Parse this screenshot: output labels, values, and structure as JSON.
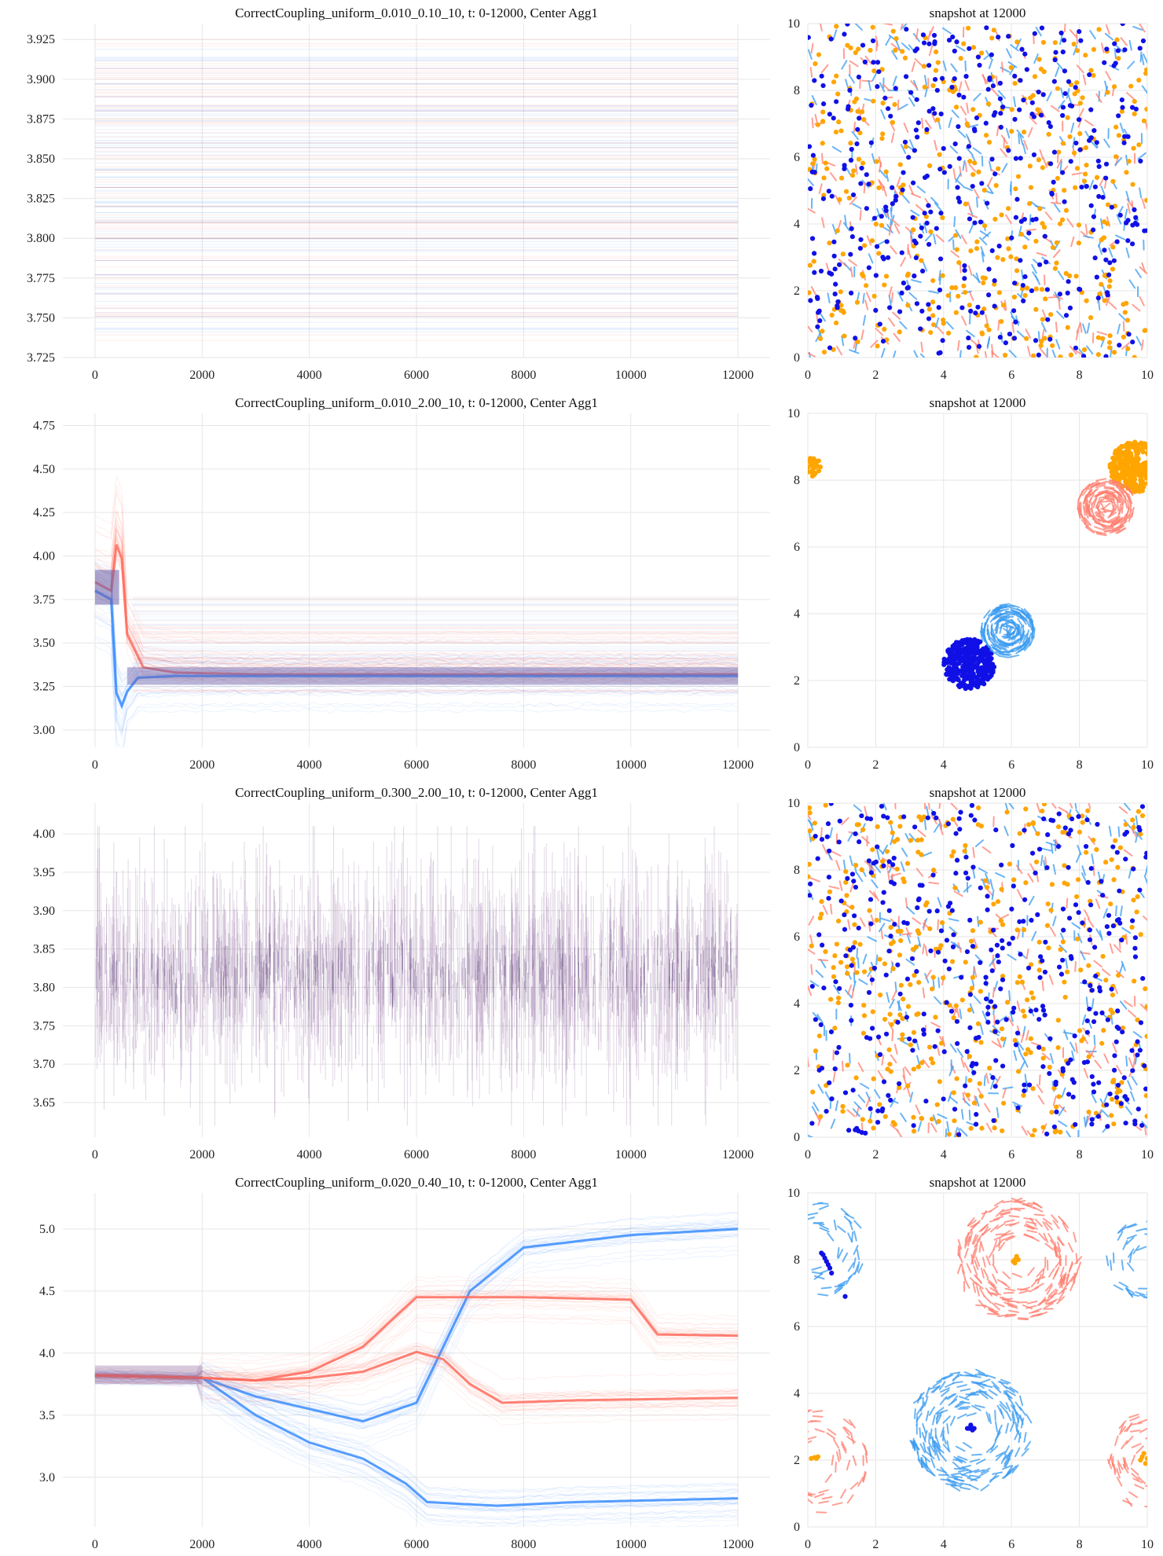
{
  "figure": {
    "title": ""
  },
  "chart_data": [
    {
      "type": "line",
      "title": "CorrectCoupling_uniform_0.010_0.10_10,     t: 0-12000, Center Agg1",
      "xlabel": "",
      "ylabel": "",
      "xlim": [
        -600,
        12600
      ],
      "ylim": [
        3.725,
        3.935
      ],
      "xticks": [
        0,
        2000,
        4000,
        6000,
        8000,
        10000,
        12000
      ],
      "yticks": [
        3.725,
        3.75,
        3.775,
        3.8,
        3.825,
        3.85,
        3.875,
        3.9,
        3.925
      ],
      "ytick_labels": [
        "3.725",
        "3.750",
        "3.775",
        "3.800",
        "3.825",
        "3.850",
        "3.875",
        "3.900",
        "3.925"
      ],
      "grid": true,
      "legend": "none",
      "colors": {
        "red": "#ff6a5a",
        "blue": "#3a8dff",
        "mix": "#7a4f8f"
      },
      "pattern": "flat",
      "series": [
        {
          "color": "blue",
          "band": [
            3.74,
            3.92
          ],
          "strong_levels": [
            3.751,
            3.777,
            3.786,
            3.81,
            3.82,
            3.843,
            3.88,
            3.897
          ]
        },
        {
          "color": "red",
          "band": [
            3.735,
            3.925
          ],
          "strong_levels": [
            3.765,
            3.8,
            3.832,
            3.857,
            3.889
          ]
        }
      ]
    },
    {
      "type": "scatter",
      "title": "snapshot at 12000",
      "xlim": [
        0,
        10
      ],
      "ylim": [
        0,
        10
      ],
      "xticks": [
        0,
        2,
        4,
        6,
        8,
        10
      ],
      "yticks": [
        0,
        2,
        4,
        6,
        8,
        10
      ],
      "grid": true,
      "legend": "none",
      "colors": {
        "dots_a": "#1010e6",
        "dots_b": "#ffa500",
        "dash_a": "#3a9bf0",
        "dash_b": "#ff7f70"
      },
      "pattern": "uniform"
    },
    {
      "type": "line",
      "title": "CorrectCoupling_uniform_0.010_2.00_10,     t: 0-12000, Center Agg1",
      "xlabel": "",
      "ylabel": "",
      "xlim": [
        -600,
        12600
      ],
      "ylim": [
        2.9,
        4.82
      ],
      "xticks": [
        0,
        2000,
        4000,
        6000,
        8000,
        10000,
        12000
      ],
      "yticks": [
        3.0,
        3.25,
        3.5,
        3.75,
        4.0,
        4.25,
        4.5,
        4.75
      ],
      "ytick_labels": [
        "3.00",
        "3.25",
        "3.50",
        "3.75",
        "4.00",
        "4.25",
        "4.50",
        "4.75"
      ],
      "grid": true,
      "legend": "none",
      "colors": {
        "red": "#ff6a5a",
        "blue": "#3a8dff",
        "mix": "#6a5fa8"
      },
      "pattern": "converge",
      "series": [
        {
          "color": "red",
          "x": [
            0,
            300,
            450,
            600,
            900,
            1500,
            3000,
            12000
          ],
          "y": [
            3.85,
            3.8,
            4.2,
            3.55,
            3.36,
            3.33,
            3.32,
            3.32
          ]
        },
        {
          "color": "blue",
          "x": [
            0,
            300,
            430,
            550,
            800,
            1500,
            3000,
            12000
          ],
          "y": [
            3.8,
            3.75,
            3.05,
            3.2,
            3.3,
            3.31,
            3.31,
            3.31
          ]
        }
      ]
    },
    {
      "type": "scatter",
      "title": "snapshot at 12000",
      "xlim": [
        0,
        10
      ],
      "ylim": [
        0,
        10
      ],
      "xticks": [
        0,
        2,
        4,
        6,
        8,
        10
      ],
      "yticks": [
        0,
        2,
        4,
        6,
        8,
        10
      ],
      "grid": true,
      "legend": "none",
      "colors": {
        "dots_a": "#1010e6",
        "dots_b": "#ffa500",
        "dash_a": "#3a9bf0",
        "dash_b": "#ff7f70"
      },
      "pattern": "clusters",
      "clusters": [
        {
          "kind": "dots_a",
          "cx": 4.75,
          "cy": 2.5,
          "r": 0.75,
          "n": 360
        },
        {
          "kind": "dash_a",
          "cx": 5.9,
          "cy": 3.5,
          "r": 0.8,
          "n": 170
        },
        {
          "kind": "dots_b",
          "cx": 9.65,
          "cy": 8.4,
          "r": 0.75,
          "n": 320
        },
        {
          "kind": "dots_b",
          "cx": 0.1,
          "cy": 8.4,
          "r": 0.3,
          "n": 40
        },
        {
          "kind": "dash_b",
          "cx": 8.8,
          "cy": 7.2,
          "r": 0.85,
          "n": 170
        }
      ]
    },
    {
      "type": "line",
      "title": "CorrectCoupling_uniform_0.300_2.00_10,     t: 0-12000, Center Agg1",
      "xlabel": "",
      "ylabel": "",
      "xlim": [
        -600,
        12600
      ],
      "ylim": [
        3.605,
        4.04
      ],
      "xticks": [
        0,
        2000,
        4000,
        6000,
        8000,
        10000,
        12000
      ],
      "yticks": [
        3.65,
        3.7,
        3.75,
        3.8,
        3.85,
        3.9,
        3.95,
        4.0
      ],
      "ytick_labels": [
        "3.65",
        "3.70",
        "3.75",
        "3.80",
        "3.85",
        "3.90",
        "3.95",
        "4.00"
      ],
      "grid": true,
      "legend": "none",
      "colors": {
        "red": "#ff6a5a",
        "blue": "#3a8dff",
        "mix": "#7a4f8f"
      },
      "pattern": "noise",
      "series": [
        {
          "color": "mix",
          "mean": 3.82,
          "spread": [
            3.62,
            4.01
          ]
        }
      ]
    },
    {
      "type": "scatter",
      "title": "snapshot at 12000",
      "xlim": [
        0,
        10
      ],
      "ylim": [
        0,
        10
      ],
      "xticks": [
        0,
        2,
        4,
        6,
        8,
        10
      ],
      "yticks": [
        0,
        2,
        4,
        6,
        8,
        10
      ],
      "grid": true,
      "legend": "none",
      "colors": {
        "dots_a": "#1010e6",
        "dots_b": "#ffa500",
        "dash_a": "#3a9bf0",
        "dash_b": "#ff7f70"
      },
      "pattern": "uniform"
    },
    {
      "type": "line",
      "title": "CorrectCoupling_uniform_0.020_0.40_10,     t: 0-12000, Center Agg1",
      "xlabel": "",
      "ylabel": "",
      "xlim": [
        -600,
        12600
      ],
      "ylim": [
        2.6,
        5.29
      ],
      "xticks": [
        0,
        2000,
        4000,
        6000,
        8000,
        10000,
        12000
      ],
      "yticks": [
        3.0,
        3.5,
        4.0,
        4.5,
        5.0
      ],
      "ytick_labels": [
        "3.0",
        "3.5",
        "4.0",
        "4.5",
        "5.0"
      ],
      "grid": true,
      "legend": "none",
      "colors": {
        "red": "#ff6a5a",
        "blue": "#3a8dff",
        "mix": "#7a4f8f"
      },
      "pattern": "branch",
      "series": [
        {
          "color": "blue",
          "x": [
            0,
            2000,
            3000,
            4000,
            5000,
            5800,
            6200,
            7500,
            9000,
            12000
          ],
          "y": [
            3.82,
            3.8,
            3.5,
            3.28,
            3.15,
            2.95,
            2.8,
            2.77,
            2.8,
            2.83
          ]
        },
        {
          "color": "blue",
          "x": [
            0,
            2000,
            3000,
            4000,
            5000,
            6000,
            7000,
            8000,
            10000,
            12000
          ],
          "y": [
            3.82,
            3.8,
            3.65,
            3.55,
            3.45,
            3.6,
            4.5,
            4.85,
            4.95,
            5.0
          ]
        },
        {
          "color": "red",
          "x": [
            0,
            2000,
            3000,
            4000,
            5000,
            6000,
            7000,
            8000,
            10000,
            10500,
            12000
          ],
          "y": [
            3.82,
            3.8,
            3.78,
            3.85,
            4.05,
            4.45,
            4.45,
            4.45,
            4.43,
            4.15,
            4.14
          ]
        },
        {
          "color": "red",
          "x": [
            0,
            2000,
            3000,
            4000,
            5000,
            6000,
            6500,
            7000,
            7600,
            9000,
            12000
          ],
          "y": [
            3.82,
            3.8,
            3.78,
            3.8,
            3.85,
            4.01,
            3.95,
            3.75,
            3.6,
            3.62,
            3.64
          ]
        }
      ]
    },
    {
      "type": "scatter",
      "title": "snapshot at 12000",
      "xlim": [
        0,
        10
      ],
      "ylim": [
        0,
        10
      ],
      "xticks": [
        0,
        2,
        4,
        6,
        8,
        10
      ],
      "yticks": [
        0,
        2,
        4,
        6,
        8,
        10
      ],
      "grid": true,
      "legend": "none",
      "colors": {
        "dots_a": "#1010e6",
        "dots_b": "#ffa500",
        "dash_a": "#3a9bf0",
        "dash_b": "#ff7f70"
      },
      "pattern": "vortex",
      "vortices": [
        {
          "kind": "dash_b",
          "cx": 6.2,
          "cy": 8.0,
          "r": 1.8,
          "n": 230
        },
        {
          "kind": "dash_a",
          "cx": 4.8,
          "cy": 2.9,
          "r": 1.8,
          "n": 240
        },
        {
          "kind": "dash_b",
          "cx": 10.2,
          "cy": 2.0,
          "r": 1.5,
          "n": 90
        },
        {
          "kind": "dash_b",
          "cx": 0.2,
          "cy": 2.0,
          "r": 1.6,
          "n": 90
        },
        {
          "kind": "dash_a",
          "cx": 0.3,
          "cy": 8.3,
          "r": 1.4,
          "n": 70
        },
        {
          "kind": "dash_a",
          "cx": 10.0,
          "cy": 8.0,
          "r": 1.2,
          "n": 50
        }
      ],
      "points": [
        {
          "kind": "dots_a",
          "x": [
            0.4,
            0.45,
            0.5,
            0.55,
            0.6,
            0.65,
            0.7,
            1.1
          ],
          "y": [
            8.2,
            8.15,
            8.05,
            7.95,
            7.85,
            7.75,
            7.6,
            6.9
          ]
        },
        {
          "kind": "dots_a",
          "x": [
            4.75,
            4.8,
            4.85,
            4.7,
            4.9,
            4.8
          ],
          "y": [
            2.95,
            3.0,
            2.9,
            2.95,
            2.95,
            3.05
          ]
        },
        {
          "kind": "dots_b",
          "x": [
            6.05,
            6.1,
            6.15,
            6.2,
            6.1,
            6.15
          ],
          "y": [
            7.95,
            8.0,
            8.05,
            8.0,
            7.9,
            8.1
          ]
        },
        {
          "kind": "dots_b",
          "x": [
            0.1,
            0.2,
            0.25,
            0.3
          ],
          "y": [
            2.05,
            2.08,
            2.05,
            2.1
          ]
        },
        {
          "kind": "dots_b",
          "x": [
            9.8,
            9.85,
            9.9,
            9.95,
            10.0
          ],
          "y": [
            2.0,
            2.1,
            2.2,
            1.9,
            2.05
          ]
        }
      ]
    }
  ]
}
